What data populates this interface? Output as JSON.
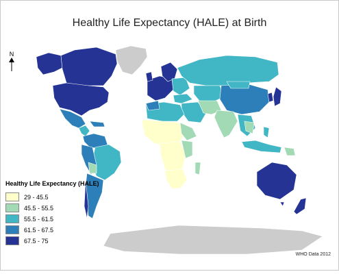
{
  "title": "Healthy Life Expectancy (HALE) at Birth",
  "north_label": "N",
  "legend": {
    "title": "Healthy Life Expectancy (HALE)",
    "items": [
      {
        "label": "29 - 45.5",
        "color": "#ffffcc"
      },
      {
        "label": "45.5 - 55.5",
        "color": "#a1dab4"
      },
      {
        "label": "55.5 - 61.5",
        "color": "#41b6c4"
      },
      {
        "label": "61.5 - 67.5",
        "color": "#2c7fb8"
      },
      {
        "label": "67.5 - 75",
        "color": "#253494"
      }
    ]
  },
  "source": "WHO Data 2012",
  "colors": {
    "no_data": "#cccccc",
    "border": "#ffffff"
  }
}
